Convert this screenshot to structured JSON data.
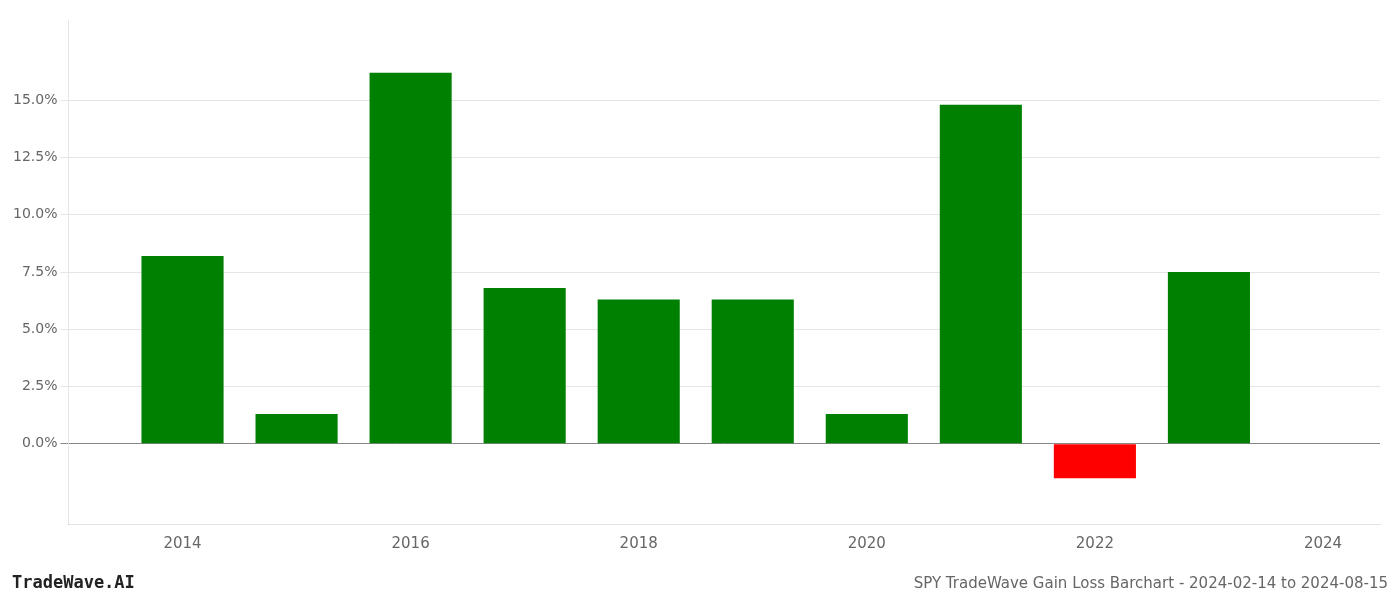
{
  "chart_data": {
    "type": "bar",
    "title": "SPY TradeWave Gain Loss Barchart - 2024-02-14 to 2024-08-15",
    "annotations": [
      "TradeWave.AI"
    ],
    "x": [
      2014,
      2015,
      2016,
      2017,
      2018,
      2019,
      2020,
      2021,
      2022,
      2023
    ],
    "values": [
      0.082,
      0.013,
      0.162,
      0.068,
      0.063,
      0.063,
      0.013,
      0.148,
      -0.015,
      0.075
    ],
    "colors": [
      "#008000",
      "#008000",
      "#008000",
      "#008000",
      "#008000",
      "#008000",
      "#008000",
      "#008000",
      "#FF0000",
      "#008000"
    ],
    "xlim": [
      2013.0,
      2024.5
    ],
    "xticks": [
      2014,
      2016,
      2018,
      2020,
      2022,
      2024
    ],
    "ylim": [
      -0.035,
      0.185
    ],
    "yticks": [
      {
        "value": 0.0,
        "label": "0.0%"
      },
      {
        "value": 0.025,
        "label": "2.5%"
      },
      {
        "value": 0.05,
        "label": "5.0%"
      },
      {
        "value": 0.075,
        "label": "7.5%"
      },
      {
        "value": 0.1,
        "label": "10.0%"
      },
      {
        "value": 0.125,
        "label": "12.5%"
      },
      {
        "value": 0.15,
        "label": "15.0%"
      }
    ],
    "grid": true
  }
}
